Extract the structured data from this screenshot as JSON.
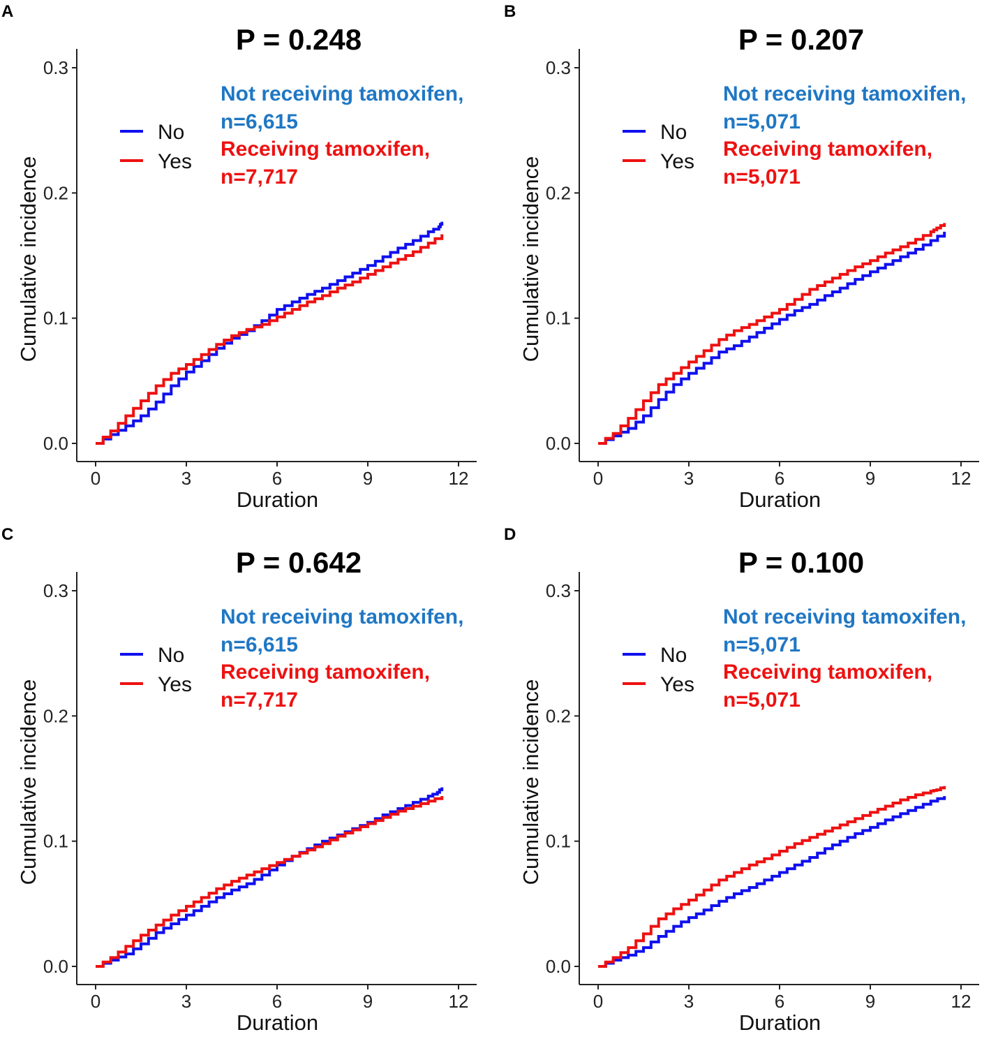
{
  "colors": {
    "no": "#1010ee",
    "yes": "#ee1111",
    "anno_no": "#1f77c4",
    "anno_yes": "#ee1111"
  },
  "chart_data": [
    {
      "panel": "A",
      "type": "line",
      "title": "P = 0.248",
      "xlabel": "Duration",
      "ylabel": "Cumulative incidence",
      "xlim": [
        0,
        12
      ],
      "ylim": [
        0,
        0.3
      ],
      "xticks": [
        "0",
        "3",
        "6",
        "9",
        "12"
      ],
      "yticks": [
        "0.0",
        "0.1",
        "0.2",
        "0.3"
      ],
      "legend": [
        "No",
        "Yes"
      ],
      "annotations": {
        "no_label": "Not receiving tamoxifen,",
        "no_n": "n=6,615",
        "yes_label": "Receiving tamoxifen,",
        "yes_n": "n=7,717"
      },
      "series": [
        {
          "name": "No",
          "x": [
            0,
            0.5,
            1,
            1.5,
            2,
            2.5,
            3,
            3.5,
            4,
            4.5,
            5,
            5.5,
            6,
            6.5,
            7,
            7.5,
            8,
            8.5,
            9,
            9.5,
            10,
            10.5,
            11,
            11.35,
            11.45
          ],
          "values": [
            0,
            0.007,
            0.014,
            0.022,
            0.033,
            0.046,
            0.057,
            0.066,
            0.076,
            0.084,
            0.09,
            0.098,
            0.107,
            0.113,
            0.119,
            0.124,
            0.13,
            0.136,
            0.142,
            0.149,
            0.156,
            0.162,
            0.169,
            0.173,
            0.177
          ]
        },
        {
          "name": "Yes",
          "x": [
            0,
            0.5,
            1,
            1.5,
            2,
            2.5,
            3,
            3.5,
            4,
            4.5,
            5,
            5.5,
            6,
            6.5,
            7,
            7.5,
            8,
            8.5,
            9,
            9.5,
            10,
            10.5,
            11,
            11.45
          ],
          "values": [
            0,
            0.01,
            0.022,
            0.034,
            0.046,
            0.056,
            0.063,
            0.071,
            0.079,
            0.086,
            0.091,
            0.095,
            0.101,
            0.107,
            0.113,
            0.118,
            0.124,
            0.129,
            0.135,
            0.141,
            0.147,
            0.153,
            0.16,
            0.167
          ]
        }
      ]
    },
    {
      "panel": "B",
      "type": "line",
      "title": "P = 0.207",
      "xlabel": "Duration",
      "ylabel": "Cumulative incidence",
      "xlim": [
        0,
        12
      ],
      "ylim": [
        0,
        0.3
      ],
      "xticks": [
        "0",
        "3",
        "6",
        "9",
        "12"
      ],
      "yticks": [
        "0.0",
        "0.1",
        "0.2",
        "0.3"
      ],
      "legend": [
        "No",
        "Yes"
      ],
      "annotations": {
        "no_label": "Not receiving tamoxifen,",
        "no_n": "n=5,071",
        "yes_label": "Receiving tamoxifen,",
        "yes_n": "n=5,071"
      },
      "series": [
        {
          "name": "No",
          "x": [
            0,
            0.5,
            1,
            1.5,
            2,
            2.5,
            3,
            3.5,
            4,
            4.5,
            5,
            5.5,
            6,
            6.5,
            7,
            7.5,
            8,
            8.5,
            9,
            9.5,
            10,
            10.5,
            11,
            11.45
          ],
          "values": [
            0,
            0.006,
            0.012,
            0.022,
            0.035,
            0.047,
            0.056,
            0.064,
            0.073,
            0.078,
            0.085,
            0.092,
            0.099,
            0.106,
            0.111,
            0.118,
            0.124,
            0.131,
            0.137,
            0.143,
            0.149,
            0.155,
            0.162,
            0.169
          ]
        },
        {
          "name": "Yes",
          "x": [
            0,
            0.5,
            1,
            1.5,
            2,
            2.5,
            3,
            3.5,
            4,
            4.5,
            5,
            5.5,
            6,
            6.5,
            7,
            7.5,
            8,
            8.5,
            9,
            9.5,
            10,
            10.5,
            11,
            11.2,
            11.45
          ],
          "values": [
            0,
            0.008,
            0.02,
            0.034,
            0.047,
            0.056,
            0.065,
            0.074,
            0.083,
            0.09,
            0.095,
            0.101,
            0.107,
            0.115,
            0.123,
            0.129,
            0.135,
            0.141,
            0.146,
            0.152,
            0.157,
            0.163,
            0.169,
            0.172,
            0.176
          ]
        }
      ]
    },
    {
      "panel": "C",
      "type": "line",
      "title": "P = 0.642",
      "xlabel": "Duration",
      "ylabel": "Cumulative incidence",
      "xlim": [
        0,
        12
      ],
      "ylim": [
        0,
        0.3
      ],
      "xticks": [
        "0",
        "3",
        "6",
        "9",
        "12"
      ],
      "yticks": [
        "0.0",
        "0.1",
        "0.2",
        "0.3"
      ],
      "legend": [
        "No",
        "Yes"
      ],
      "annotations": {
        "no_label": "Not receiving tamoxifen,",
        "no_n": "n=6,615",
        "yes_label": "Receiving tamoxifen,",
        "yes_n": "n=7,717"
      },
      "series": [
        {
          "name": "No",
          "x": [
            0,
            0.5,
            1,
            1.5,
            2,
            2.5,
            3,
            3.5,
            4,
            4.5,
            5,
            5.5,
            6,
            6.5,
            7,
            7.5,
            8,
            8.5,
            9,
            9.5,
            10,
            10.5,
            11,
            11.3,
            11.45
          ],
          "values": [
            0,
            0.005,
            0.01,
            0.018,
            0.027,
            0.034,
            0.041,
            0.048,
            0.055,
            0.061,
            0.066,
            0.073,
            0.081,
            0.088,
            0.094,
            0.1,
            0.105,
            0.11,
            0.115,
            0.121,
            0.126,
            0.131,
            0.136,
            0.139,
            0.143
          ]
        },
        {
          "name": "Yes",
          "x": [
            0,
            0.5,
            1,
            1.5,
            2,
            2.5,
            3,
            3.5,
            4,
            4.5,
            5,
            5.5,
            6,
            6.5,
            7,
            7.5,
            8,
            8.5,
            9,
            9.5,
            10,
            10.5,
            11,
            11.45
          ],
          "values": [
            0,
            0.007,
            0.016,
            0.025,
            0.033,
            0.041,
            0.048,
            0.055,
            0.062,
            0.068,
            0.073,
            0.078,
            0.083,
            0.088,
            0.093,
            0.098,
            0.104,
            0.109,
            0.114,
            0.119,
            0.124,
            0.128,
            0.132,
            0.136
          ]
        }
      ]
    },
    {
      "panel": "D",
      "type": "line",
      "title": "P = 0.100",
      "xlabel": "Duration",
      "ylabel": "Cumulative incidence",
      "xlim": [
        0,
        12
      ],
      "ylim": [
        0,
        0.3
      ],
      "xticks": [
        "0",
        "3",
        "6",
        "9",
        "12"
      ],
      "yticks": [
        "0.0",
        "0.1",
        "0.2",
        "0.3"
      ],
      "legend": [
        "No",
        "Yes"
      ],
      "annotations": {
        "no_label": "Not receiving tamoxifen,",
        "no_n": "n=5,071",
        "yes_label": "Receiving tamoxifen,",
        "yes_n": "n=5,071"
      },
      "series": [
        {
          "name": "No",
          "x": [
            0,
            0.5,
            1,
            1.5,
            2,
            2.5,
            3,
            3.5,
            4,
            4.5,
            5,
            5.5,
            6,
            6.5,
            7,
            7.5,
            8,
            8.5,
            9,
            9.5,
            10,
            10.5,
            11,
            11.45
          ],
          "values": [
            0,
            0.005,
            0.009,
            0.015,
            0.024,
            0.032,
            0.039,
            0.045,
            0.052,
            0.058,
            0.063,
            0.069,
            0.075,
            0.081,
            0.087,
            0.094,
            0.1,
            0.106,
            0.111,
            0.117,
            0.122,
            0.127,
            0.132,
            0.136
          ]
        },
        {
          "name": "Yes",
          "x": [
            0,
            0.5,
            1,
            1.5,
            2,
            2.5,
            3,
            3.5,
            4,
            4.5,
            5,
            5.5,
            6,
            6.5,
            7,
            7.5,
            8,
            8.5,
            9,
            9.5,
            10,
            10.5,
            11,
            11.2,
            11.45
          ],
          "values": [
            0,
            0.007,
            0.015,
            0.026,
            0.038,
            0.046,
            0.053,
            0.061,
            0.069,
            0.075,
            0.081,
            0.086,
            0.092,
            0.098,
            0.103,
            0.108,
            0.113,
            0.118,
            0.123,
            0.128,
            0.133,
            0.137,
            0.14,
            0.141,
            0.144
          ]
        }
      ]
    }
  ]
}
